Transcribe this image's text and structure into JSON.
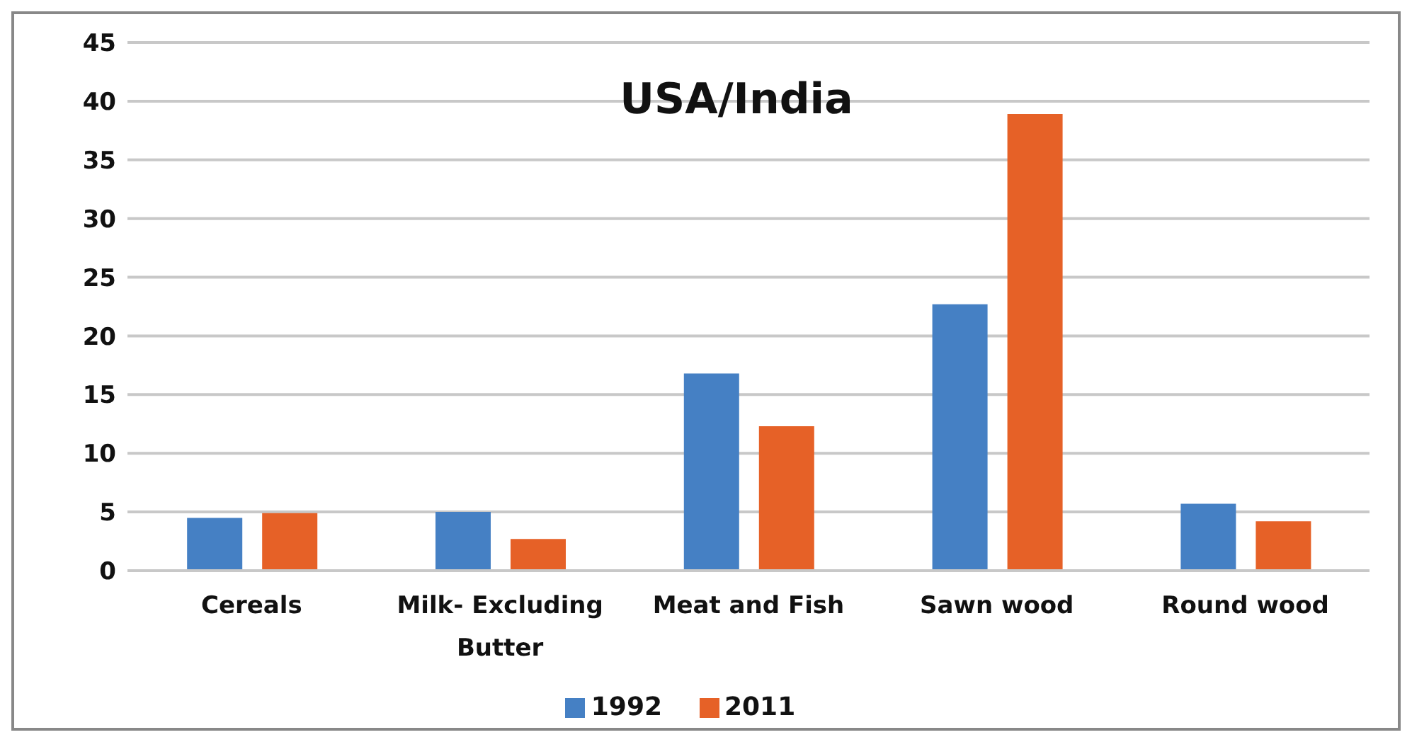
{
  "chart_data": {
    "type": "bar",
    "title": "USA/India",
    "categories": [
      "Cereals",
      "Milk- Excluding Butter",
      "Meat and Fish",
      "Sawn wood",
      "Round wood"
    ],
    "series": [
      {
        "name": "1992",
        "color": "#4580c4",
        "values": [
          4.5,
          5.0,
          16.8,
          22.7,
          5.7
        ]
      },
      {
        "name": "2011",
        "color": "#e66127",
        "values": [
          4.9,
          2.7,
          12.3,
          38.9,
          4.2
        ]
      }
    ],
    "ylim": [
      0,
      45
    ],
    "yticks": [
      0,
      5,
      10,
      15,
      20,
      25,
      30,
      35,
      40,
      45
    ],
    "grid": "y",
    "legend": "bottom"
  }
}
